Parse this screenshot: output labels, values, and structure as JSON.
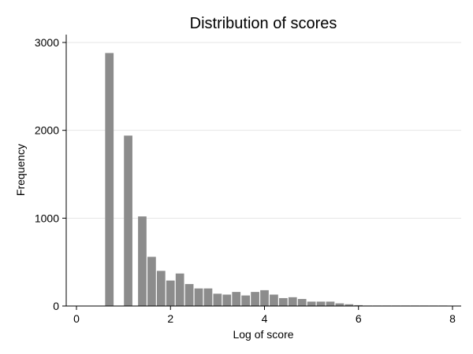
{
  "chart_data": {
    "type": "bar",
    "subtype": "histogram",
    "title": "Distribution of scores",
    "xlabel": "Log of score",
    "ylabel": "Frequency",
    "xlim": [
      0,
      8
    ],
    "ylim": [
      0,
      3000
    ],
    "x_ticks": [
      "0",
      "2",
      "4",
      "6",
      "8"
    ],
    "y_ticks": [
      "0",
      "1000",
      "2000",
      "3000"
    ],
    "grid": true,
    "legend": "none",
    "bar_color": "#8c8c8c",
    "bin_width": 0.2,
    "bins": [
      {
        "x0": 0.6,
        "value": 2880
      },
      {
        "x0": 1.0,
        "value": 1940
      },
      {
        "x0": 1.3,
        "value": 1020
      },
      {
        "x0": 1.5,
        "value": 560
      },
      {
        "x0": 1.7,
        "value": 400
      },
      {
        "x0": 1.9,
        "value": 290
      },
      {
        "x0": 2.1,
        "value": 370
      },
      {
        "x0": 2.3,
        "value": 250
      },
      {
        "x0": 2.5,
        "value": 200
      },
      {
        "x0": 2.7,
        "value": 200
      },
      {
        "x0": 2.9,
        "value": 140
      },
      {
        "x0": 3.1,
        "value": 130
      },
      {
        "x0": 3.3,
        "value": 160
      },
      {
        "x0": 3.5,
        "value": 120
      },
      {
        "x0": 3.7,
        "value": 160
      },
      {
        "x0": 3.9,
        "value": 180
      },
      {
        "x0": 4.1,
        "value": 130
      },
      {
        "x0": 4.3,
        "value": 90
      },
      {
        "x0": 4.5,
        "value": 100
      },
      {
        "x0": 4.7,
        "value": 80
      },
      {
        "x0": 4.9,
        "value": 50
      },
      {
        "x0": 5.1,
        "value": 50
      },
      {
        "x0": 5.3,
        "value": 50
      },
      {
        "x0": 5.5,
        "value": 30
      },
      {
        "x0": 5.7,
        "value": 20
      },
      {
        "x0": 5.9,
        "value": 10
      },
      {
        "x0": 6.1,
        "value": 5
      },
      {
        "x0": 6.3,
        "value": 3
      },
      {
        "x0": 6.5,
        "value": 2
      },
      {
        "x0": 6.7,
        "value": 1
      },
      {
        "x0": 6.9,
        "value": 1
      },
      {
        "x0": 7.1,
        "value": 1
      },
      {
        "x0": 7.3,
        "value": 1
      },
      {
        "x0": 7.5,
        "value": 1
      },
      {
        "x0": 7.7,
        "value": 1
      }
    ]
  }
}
